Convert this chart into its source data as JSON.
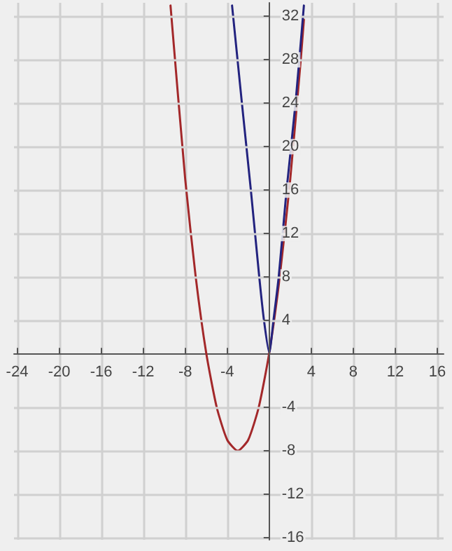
{
  "chart_data": {
    "type": "line",
    "series": [
      {
        "color": "#a3282a",
        "x": [
          -9.4,
          -8,
          -7,
          -6,
          -5,
          -4,
          -3,
          -2,
          -1,
          0,
          1,
          2,
          3,
          3.3
        ],
        "values": [
          33,
          17,
          8,
          1,
          -4,
          -7,
          -8,
          -7,
          -4,
          1,
          8,
          17,
          28,
          31.7
        ]
      },
      {
        "color": "#23237f",
        "x": [
          -3.54,
          -2.6,
          -1.75,
          -0.95,
          -0.5,
          0,
          0.4,
          0.9,
          1.65,
          2.5,
          3.3
        ],
        "values": [
          33,
          24,
          16,
          8,
          4,
          1,
          4,
          8,
          16,
          24,
          33
        ]
      }
    ],
    "xlim": [
      -24.3,
      16.6
    ],
    "xticks": [
      -24,
      -20,
      -16,
      -12,
      -8,
      -4,
      4,
      8,
      12,
      16
    ],
    "ylim": [
      -16.2,
      33.25
    ],
    "yticks": [
      -16,
      -12,
      -8,
      -4,
      4,
      8,
      12,
      16,
      20,
      24,
      28,
      32
    ],
    "grid": true,
    "marker": "none",
    "line_style": "solid"
  }
}
